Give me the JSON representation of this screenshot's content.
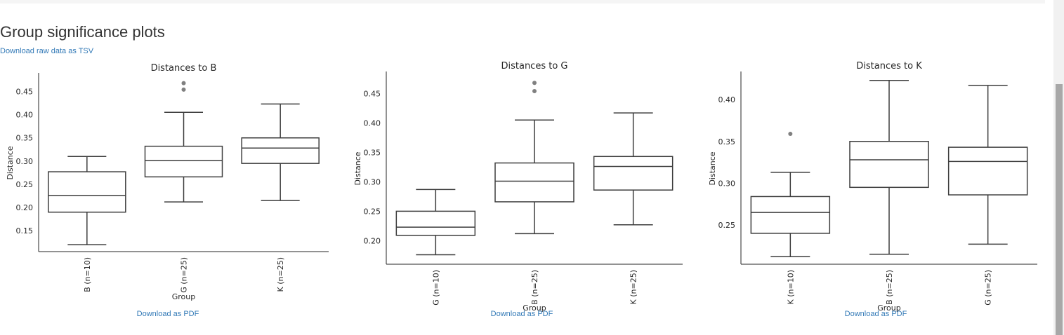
{
  "page": {
    "title": "Group significance plots",
    "raw_link": "Download raw data as TSV",
    "pdf_links": [
      "Download as PDF",
      "Download as PDF",
      "Download as PDF"
    ]
  },
  "chart_data": [
    {
      "type": "box",
      "title": "Distances to B",
      "xlabel": "Group",
      "ylabel": "Distance",
      "categories": [
        "B (n=10)",
        "G (n=25)",
        "K (n=25)"
      ],
      "yticks": [
        0.15,
        0.2,
        0.25,
        0.3,
        0.35,
        0.4,
        0.45
      ],
      "ytick_labels": [
        "0.15",
        "0.20",
        "0.25",
        "0.30",
        "0.35",
        "0.40",
        "0.45"
      ],
      "ylim": [
        0.105,
        0.487
      ],
      "boxes": [
        {
          "whislo": 0.12,
          "q1": 0.19,
          "med": 0.226,
          "q3": 0.277,
          "whishi": 0.31,
          "fliers": []
        },
        {
          "whislo": 0.212,
          "q1": 0.266,
          "med": 0.301,
          "q3": 0.332,
          "whishi": 0.405,
          "fliers": [
            0.454,
            0.468
          ]
        },
        {
          "whislo": 0.215,
          "q1": 0.295,
          "med": 0.328,
          "q3": 0.35,
          "whishi": 0.423,
          "fliers": []
        }
      ]
    },
    {
      "type": "box",
      "title": "Distances to G",
      "xlabel": "Group",
      "ylabel": "Distance",
      "categories": [
        "G (n=10)",
        "B (n=25)",
        "K (n=25)"
      ],
      "yticks": [
        0.2,
        0.25,
        0.3,
        0.35,
        0.4,
        0.45
      ],
      "ytick_labels": [
        "0.20",
        "0.25",
        "0.30",
        "0.35",
        "0.40",
        "0.45"
      ],
      "ylim": [
        0.16,
        0.485
      ],
      "boxes": [
        {
          "whislo": 0.176,
          "q1": 0.209,
          "med": 0.223,
          "q3": 0.25,
          "whishi": 0.287,
          "fliers": []
        },
        {
          "whislo": 0.212,
          "q1": 0.266,
          "med": 0.301,
          "q3": 0.332,
          "whishi": 0.405,
          "fliers": [
            0.454,
            0.468
          ]
        },
        {
          "whislo": 0.227,
          "q1": 0.286,
          "med": 0.326,
          "q3": 0.343,
          "whishi": 0.417,
          "fliers": []
        }
      ]
    },
    {
      "type": "box",
      "title": "Distances to K",
      "xlabel": "Group",
      "ylabel": "Distance",
      "categories": [
        "K (n=10)",
        "B (n=25)",
        "G (n=25)"
      ],
      "yticks": [
        0.25,
        0.3,
        0.35,
        0.4
      ],
      "ytick_labels": [
        "0.25",
        "0.30",
        "0.35",
        "0.40"
      ],
      "ylim": [
        0.203,
        0.432
      ],
      "boxes": [
        {
          "whislo": 0.212,
          "q1": 0.24,
          "med": 0.265,
          "q3": 0.284,
          "whishi": 0.313,
          "fliers": [
            0.359
          ]
        },
        {
          "whislo": 0.215,
          "q1": 0.295,
          "med": 0.328,
          "q3": 0.35,
          "whishi": 0.423,
          "fliers": []
        },
        {
          "whislo": 0.227,
          "q1": 0.286,
          "med": 0.326,
          "q3": 0.343,
          "whishi": 0.417,
          "fliers": []
        }
      ]
    }
  ]
}
